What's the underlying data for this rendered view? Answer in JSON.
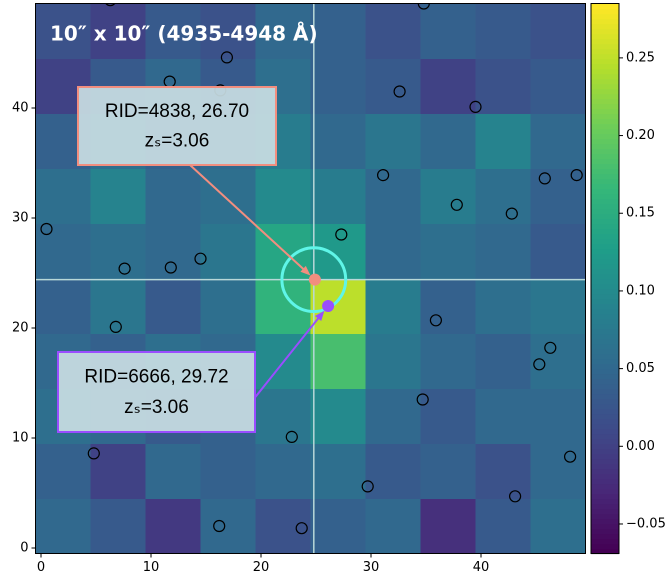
{
  "chart_data": {
    "type": "heatmap",
    "title": "10″ x 10″ (4935-4948 Å)",
    "colormap": "viridis",
    "xlim": [
      -0.5,
      49.5
    ],
    "ylim": [
      -0.5,
      49.5
    ],
    "xticks": [
      0,
      10,
      20,
      30,
      40
    ],
    "yticks": [
      0,
      10,
      20,
      30,
      40
    ],
    "xbins": [
      -0.5,
      4.5,
      9.5,
      14.5,
      19.5,
      24.5,
      29.5,
      34.5,
      39.5,
      44.5,
      49.5
    ],
    "ybins": [
      -0.5,
      4.5,
      9.5,
      14.5,
      19.5,
      24.5,
      29.5,
      34.5,
      39.5,
      44.5,
      49.5
    ],
    "z": [
      [
        0.05,
        0.03,
        -0.01,
        0.05,
        0.02,
        0.04,
        0.05,
        -0.02,
        0.03,
        0.06
      ],
      [
        0.04,
        0.0,
        0.05,
        0.04,
        0.05,
        0.06,
        0.03,
        0.04,
        0.02,
        0.05
      ],
      [
        0.06,
        0.05,
        0.03,
        0.04,
        0.07,
        0.1,
        0.05,
        0.03,
        0.05,
        0.05
      ],
      [
        0.05,
        0.04,
        0.06,
        0.05,
        0.1,
        0.18,
        0.07,
        0.05,
        0.04,
        0.06
      ],
      [
        0.04,
        0.07,
        0.03,
        0.06,
        0.16,
        0.25,
        0.08,
        0.04,
        0.06,
        0.07
      ],
      [
        0.05,
        0.06,
        0.05,
        0.07,
        0.14,
        0.12,
        0.05,
        0.06,
        0.05,
        0.03
      ],
      [
        0.06,
        0.09,
        0.05,
        0.06,
        0.1,
        0.08,
        0.05,
        0.08,
        0.06,
        0.04
      ],
      [
        0.04,
        0.06,
        0.04,
        0.05,
        0.08,
        0.05,
        0.07,
        0.05,
        0.09,
        0.05
      ],
      [
        0.0,
        0.03,
        0.05,
        0.03,
        0.06,
        0.04,
        0.03,
        0.0,
        0.02,
        0.03
      ],
      [
        0.02,
        0.0,
        0.03,
        0.02,
        0.05,
        0.04,
        0.02,
        0.04,
        0.03,
        0.02
      ]
    ],
    "clim": [
      -0.069,
      0.285
    ],
    "cticks": [
      {
        "value": -0.05,
        "label": "−0.05"
      },
      {
        "value": 0,
        "label": "0.00"
      },
      {
        "value": 0.05,
        "label": "0.05"
      },
      {
        "value": 0.1,
        "label": "0.10"
      },
      {
        "value": 0.15,
        "label": "0.15"
      },
      {
        "value": 0.2,
        "label": "0.20"
      },
      {
        "value": 0.25,
        "label": "0.25"
      }
    ],
    "sources": {
      "color": "#000000",
      "x": [
        6.3,
        34.8,
        16.9,
        11.7,
        16.3,
        32.6,
        39.5,
        31.1,
        45.8,
        48.7,
        37.8,
        42.8,
        0.5,
        27.3,
        14.5,
        7.6,
        11.8,
        35.9,
        6.8,
        46.3,
        45.3,
        34.7,
        22.8,
        4.8,
        48.1,
        29.7,
        43.1,
        16.2,
        23.7
      ],
      "y": [
        49.8,
        49.5,
        44.6,
        42.4,
        41.6,
        41.5,
        40.1,
        33.9,
        33.6,
        33.9,
        31.2,
        30.4,
        29.0,
        28.5,
        26.3,
        25.4,
        25.5,
        20.7,
        20.1,
        18.2,
        16.7,
        13.5,
        10.1,
        8.6,
        8.3,
        5.6,
        4.7,
        2.0,
        1.8
      ]
    },
    "crosshair": {
      "x": 24.8,
      "y": 24.4,
      "color": "#b8d8d8"
    },
    "aperture": {
      "x": 24.8,
      "y": 24.4,
      "radius": 2.9,
      "color": "#5ff5e8"
    },
    "annotations": [
      {
        "lines": [
          "RID=4838, 26.70",
          "zₛ=3.06"
        ],
        "x": 24.9,
        "y": 24.4,
        "color": "#f28e7f"
      },
      {
        "lines": [
          "RID=6666, 29.72",
          "zₛ=3.06"
        ],
        "x": 26.1,
        "y": 22.0,
        "color": "#9a4dff"
      }
    ]
  }
}
